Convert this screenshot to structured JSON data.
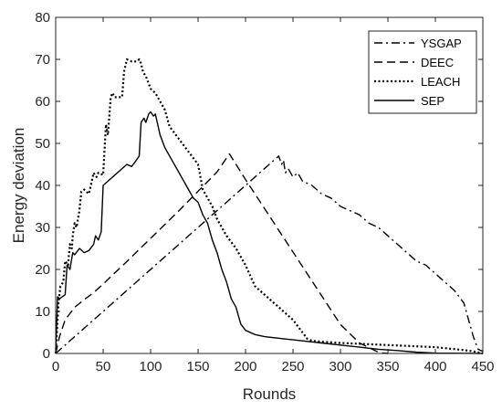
{
  "chart_data": {
    "type": "line",
    "xlabel": "Rounds",
    "ylabel": "Energy deviation",
    "xlim": [
      0,
      450
    ],
    "ylim": [
      0,
      80
    ],
    "xticks": [
      0,
      50,
      100,
      150,
      200,
      250,
      300,
      350,
      400,
      450
    ],
    "yticks": [
      0,
      10,
      20,
      30,
      40,
      50,
      60,
      70,
      80
    ],
    "grid": false,
    "legend_position": "top-right",
    "series": [
      {
        "name": "YSGAP",
        "line_style": "dash-dot",
        "color": "#000000",
        "x": [
          0,
          235,
          238,
          240,
          242,
          245,
          250,
          255,
          260,
          270,
          280,
          290,
          300,
          310,
          320,
          330,
          340,
          350,
          360,
          370,
          380,
          390,
          400,
          410,
          420,
          430,
          435,
          440,
          445,
          450
        ],
        "y": [
          0,
          47,
          45,
          46,
          43,
          44,
          42,
          43,
          41,
          40,
          38,
          37,
          35,
          34,
          33,
          31,
          30,
          28,
          26,
          24,
          22,
          21,
          19,
          17,
          15,
          12,
          8,
          4,
          1,
          0.5
        ]
      },
      {
        "name": "DEEC",
        "line_style": "dashed",
        "color": "#000000",
        "x": [
          0,
          4,
          10,
          20,
          30,
          40,
          50,
          60,
          70,
          80,
          90,
          100,
          110,
          120,
          130,
          140,
          150,
          160,
          170,
          183,
          190,
          200,
          220,
          240,
          260,
          280,
          300,
          320,
          340,
          345,
          350
        ],
        "y": [
          0,
          4,
          8,
          11,
          12.8,
          14.5,
          16.5,
          18.7,
          20.8,
          23,
          25.2,
          27.4,
          29.6,
          31.8,
          34,
          36.3,
          38.6,
          40.9,
          43.2,
          47.5,
          45,
          41.4,
          34.5,
          27.6,
          20.7,
          13.8,
          6.9,
          2.5,
          0.3,
          0.1,
          0
        ]
      },
      {
        "name": "LEACH",
        "line_style": "dotted",
        "color": "#000000",
        "x": [
          0,
          3,
          5,
          8,
          10,
          13,
          15,
          17,
          18,
          20,
          22,
          25,
          27,
          30,
          35,
          40,
          43,
          45,
          50,
          53,
          55,
          58,
          60,
          62,
          65,
          70,
          72,
          75,
          80,
          85,
          88,
          90,
          92,
          95,
          100,
          105,
          110,
          115,
          120,
          130,
          140,
          150,
          155,
          160,
          165,
          170,
          180,
          190,
          200,
          210,
          220,
          230,
          240,
          250,
          260,
          265,
          270,
          280,
          300,
          350,
          400,
          430,
          440,
          450
        ],
        "y": [
          0,
          12,
          16,
          17,
          22,
          21,
          26,
          25,
          28,
          31,
          30,
          34,
          38.5,
          39,
          38,
          43,
          42,
          43,
          42.5,
          54.5,
          52,
          61,
          62,
          61,
          61,
          61,
          67,
          70,
          69.5,
          69.5,
          70,
          69,
          67,
          66,
          63,
          62,
          60,
          58,
          54,
          51,
          48,
          45,
          39,
          37,
          35,
          32,
          28,
          25,
          21,
          16,
          14,
          12,
          10,
          8,
          5,
          3.5,
          3,
          2.8,
          2.5,
          2,
          1.5,
          0.8,
          0.5,
          0
        ]
      },
      {
        "name": "SEP",
        "line_style": "solid",
        "color": "#000000",
        "x": [
          0,
          2,
          4,
          10,
          12,
          15,
          18,
          20,
          25,
          30,
          35,
          40,
          42,
          45,
          48,
          50,
          55,
          60,
          65,
          70,
          75,
          80,
          85,
          88,
          90,
          93,
          95,
          98,
          100,
          103,
          105,
          108,
          110,
          115,
          120,
          125,
          130,
          135,
          140,
          145,
          150,
          155,
          160,
          165,
          170,
          175,
          180,
          185,
          190,
          195,
          200,
          210,
          220,
          240,
          260,
          280,
          300,
          320,
          340,
          360,
          380,
          400,
          450
        ],
        "y": [
          0,
          13.5,
          13,
          14,
          21,
          20,
          24,
          23.5,
          25,
          24,
          24.5,
          26,
          28,
          27,
          29,
          40,
          41,
          42,
          43,
          44,
          45,
          44.5,
          46,
          47,
          55,
          56,
          55,
          57,
          57.5,
          56.5,
          57,
          54,
          52,
          49,
          47,
          45,
          43,
          41,
          39,
          37,
          36,
          33,
          31,
          27,
          24,
          20,
          17,
          13,
          11,
          7,
          5.5,
          4.5,
          4,
          3.5,
          3,
          2.5,
          2,
          1.5,
          1,
          0.7,
          0.3,
          0.1,
          0
        ]
      }
    ]
  }
}
